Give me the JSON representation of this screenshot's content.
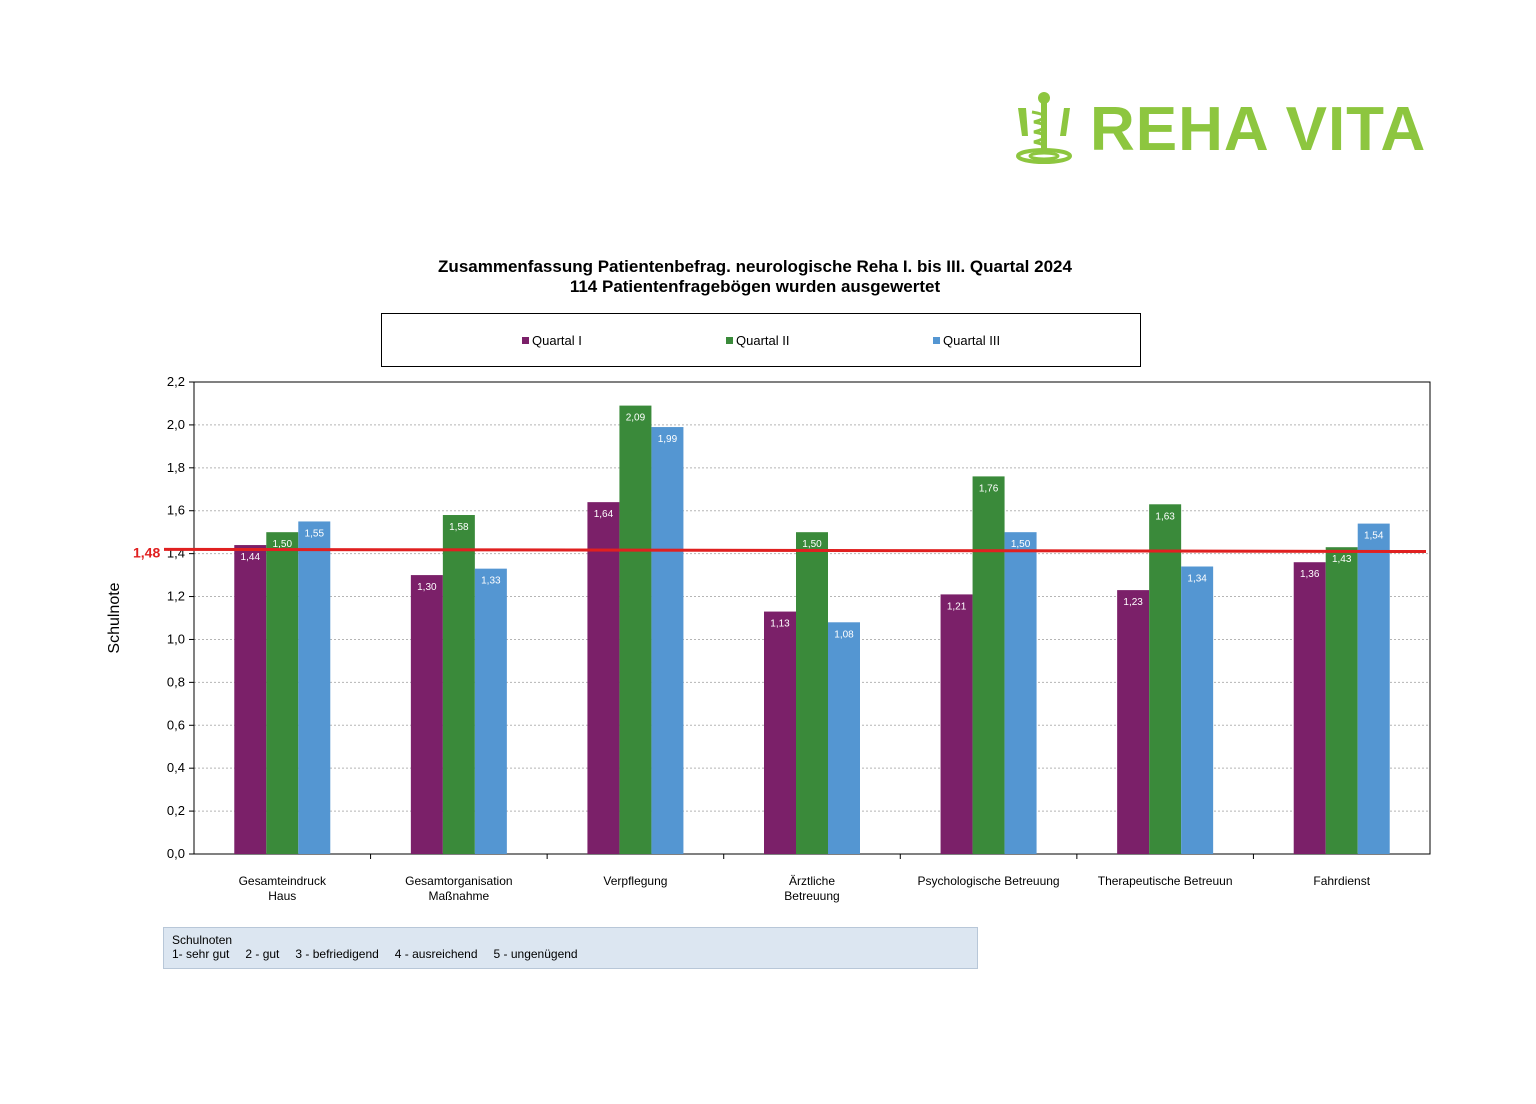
{
  "logo": {
    "text": "REHA VITA",
    "color": "#8dc63f",
    "icon": "staff-of-asclepius-icon"
  },
  "colors": {
    "q1": "#7b2069",
    "q2": "#3a8a3a",
    "q3": "#5496d2",
    "reference_line": "#e02020",
    "reference_label": "#e02020"
  },
  "reference": {
    "label": "1,48"
  },
  "notes": {
    "title": "Schulnoten",
    "items": [
      "1- sehr gut",
      "2 - gut",
      "3 - befriedigend",
      "4 -  ausreichend",
      "5 - ungenügend"
    ]
  },
  "chart_data": {
    "type": "bar",
    "title": "Zusammenfassung Patientenbefrag. neurologische Reha I. bis III. Quartal 2024",
    "subtitle": "114 Patientenfragebögen wurden ausgewertet",
    "xlabel": "",
    "ylabel": "Schulnote",
    "ylim": [
      0,
      2.2
    ],
    "yticks": [
      "0,0",
      "0,2",
      "0,4",
      "0,6",
      "0,8",
      "1,0",
      "1,2",
      "1,4",
      "1,6",
      "1,8",
      "2,0",
      "2,2"
    ],
    "grid": true,
    "legend_position": "top",
    "categories": [
      [
        "Gesamteindruck",
        "Haus"
      ],
      [
        "Gesamtorganisation",
        "Maßnahme"
      ],
      [
        "Verpflegung"
      ],
      [
        "Ärztliche",
        "Betreuung"
      ],
      [
        "Psychologische Betreuung"
      ],
      [
        "Therapeutische Betreuun"
      ],
      [
        "Fahrdienst"
      ]
    ],
    "series": [
      {
        "name": "Quartal I",
        "values": [
          1.44,
          1.3,
          1.64,
          1.13,
          1.21,
          1.23,
          1.36
        ],
        "labels": [
          "1,44",
          "1,30",
          "1,64",
          "1,13",
          "1,21",
          "1,23",
          "1,36"
        ]
      },
      {
        "name": "Quartal II",
        "values": [
          1.5,
          1.58,
          2.09,
          1.5,
          1.76,
          1.63,
          1.43
        ],
        "labels": [
          "1,50",
          "1,58",
          "2,09",
          "1,50",
          "1,76",
          "1,63",
          "1,43"
        ]
      },
      {
        "name": "Quartal III",
        "values": [
          1.55,
          1.33,
          1.99,
          1.08,
          1.5,
          1.34,
          1.54
        ],
        "labels": [
          "1,55",
          "1,33",
          "1,99",
          "1,08",
          "1,50",
          "1,34",
          "1,54"
        ]
      }
    ],
    "reference_line": {
      "start": 1.42,
      "end": 1.41,
      "label": "1,48"
    }
  }
}
